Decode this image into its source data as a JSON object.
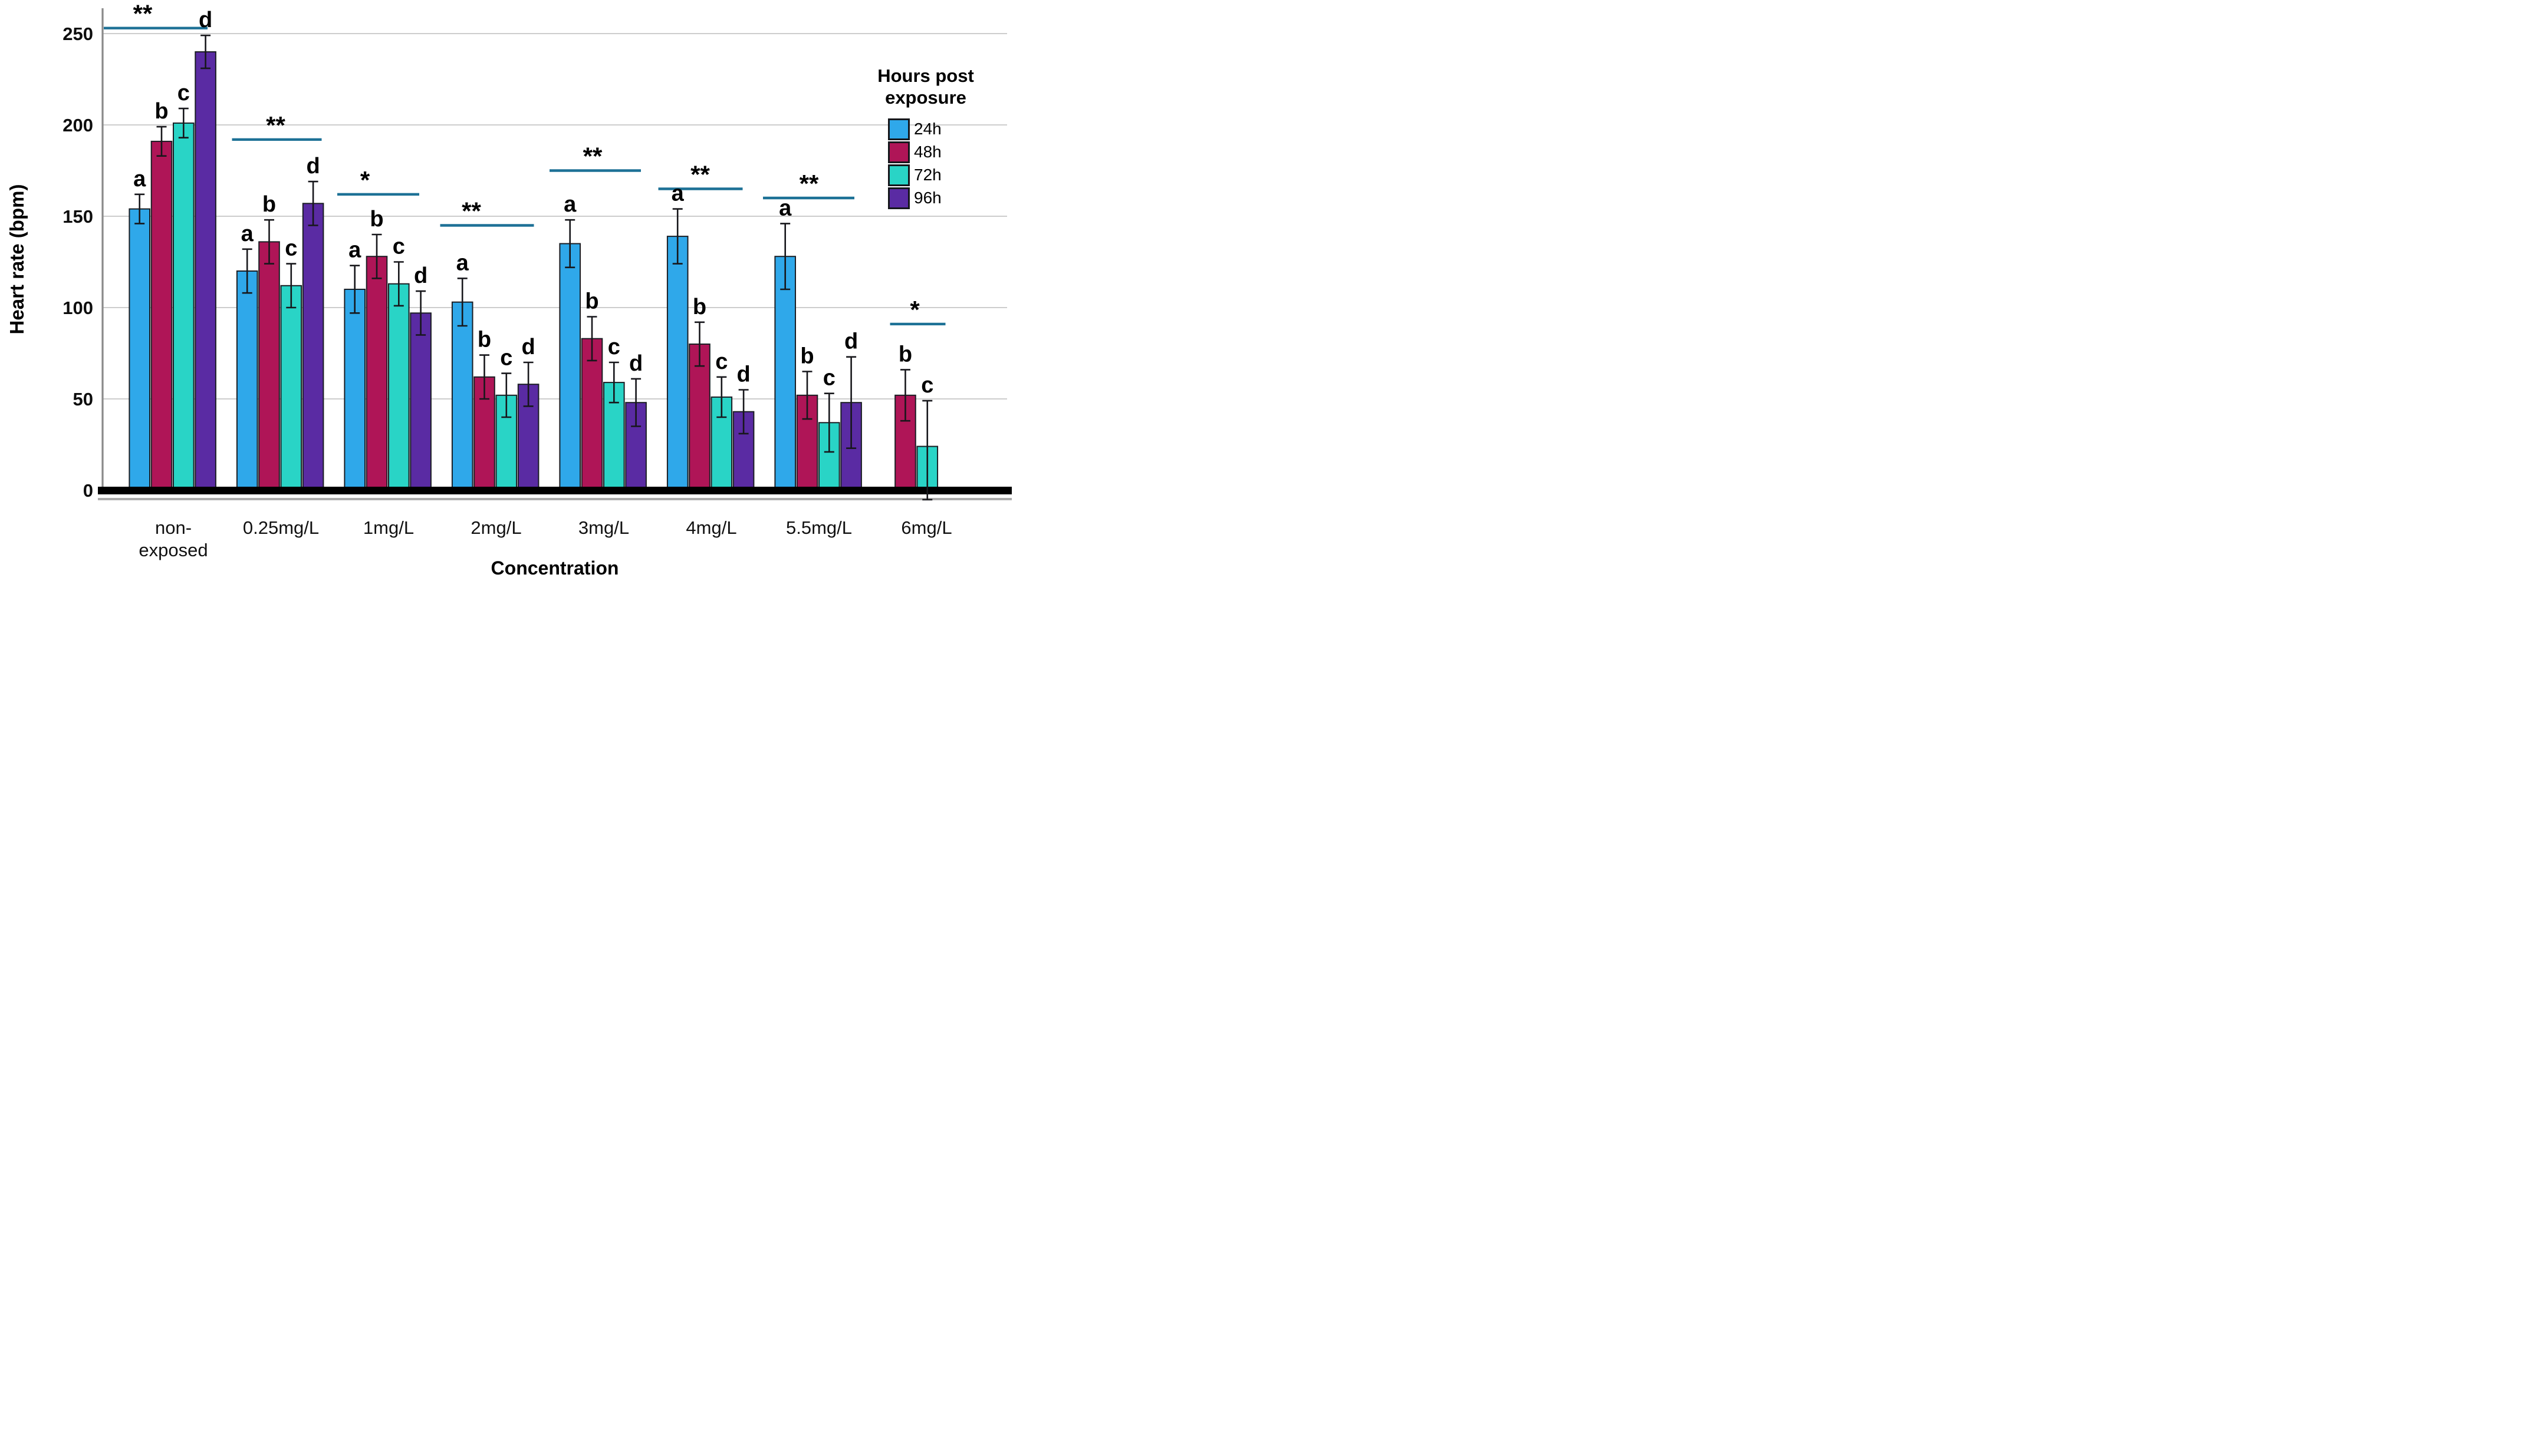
{
  "figure": {
    "kind": "grouped-bar-chart-with-error-bars",
    "background": "#ffffff"
  },
  "chart_data": {
    "type": "bar",
    "title": "",
    "xlabel": "Concentration",
    "ylabel": "Heart rate (bpm)",
    "ylim": [
      0,
      260
    ],
    "yticks": [
      0,
      50,
      100,
      150,
      200,
      250
    ],
    "grid": true,
    "legend": {
      "title": "Hours post\nexposure",
      "position": "right"
    },
    "categories": [
      "non-\nexposed",
      "0.25mg/L",
      "1mg/L",
      "2mg/L",
      "3mg/L",
      "4mg/L",
      "5.5mg/L",
      "6mg/L"
    ],
    "series": [
      {
        "name": "24h",
        "color": "#2FA8EA",
        "letter": "a",
        "values": [
          154,
          120,
          110,
          103,
          135,
          139,
          128,
          null
        ],
        "errors": [
          8,
          12,
          13,
          13,
          13,
          15,
          18,
          null
        ]
      },
      {
        "name": "48h",
        "color": "#AF1557",
        "letter": "b",
        "values": [
          191,
          136,
          128,
          62,
          83,
          80,
          52,
          52
        ],
        "errors": [
          8,
          12,
          12,
          12,
          12,
          12,
          13,
          14
        ]
      },
      {
        "name": "72h",
        "color": "#29D4C6",
        "letter": "c",
        "values": [
          201,
          112,
          113,
          52,
          59,
          51,
          37,
          24
        ],
        "errors": [
          8,
          12,
          12,
          12,
          11,
          11,
          16,
          25
        ]
      },
      {
        "name": "96h",
        "color": "#5A2BA3",
        "letter": "d",
        "values": [
          240,
          157,
          97,
          58,
          48,
          43,
          48,
          null
        ],
        "errors": [
          9,
          12,
          12,
          12,
          13,
          12,
          25,
          null
        ]
      }
    ],
    "significance": [
      {
        "category_index": 0,
        "stars": "**",
        "y": 253,
        "x0": -120,
        "x1": 58,
        "sx": -52
      },
      {
        "category_index": 1,
        "stars": "**",
        "y": 192,
        "x0": -83,
        "x1": 69,
        "sx": -9
      },
      {
        "category_index": 2,
        "stars": "*",
        "y": 162,
        "x0": -87,
        "x1": 52,
        "sx": -40
      },
      {
        "category_index": 3,
        "stars": "**",
        "y": 145,
        "x0": -95,
        "x1": 64,
        "sx": -42
      },
      {
        "category_index": 4,
        "stars": "**",
        "y": 175,
        "x0": -92,
        "x1": 63,
        "sx": -19
      },
      {
        "category_index": 5,
        "stars": "**",
        "y": 165,
        "x0": -90,
        "x1": 53,
        "sx": -19
      },
      {
        "category_index": 6,
        "stars": "**",
        "y": 160,
        "x0": -95,
        "x1": 60,
        "sx": -17
      },
      {
        "category_index": 7,
        "stars": "*",
        "y": 91,
        "x0": -62,
        "x1": 32,
        "sx": -20
      }
    ],
    "bar_position_overrides": [
      {
        "category_index": 7,
        "series_index": 1,
        "pos": 0.57
      },
      {
        "category_index": 7,
        "series_index": 2,
        "pos": 1.57
      }
    ],
    "colors": {
      "sig_line": "#1D7196",
      "gridline": "#C6C6C6",
      "axis_line": "#000000",
      "axis_shadow": "#ABABAB",
      "y_axis_line": "#8A8A8A",
      "bar_outline": "#1B1E24",
      "error_bar": "#17171B",
      "text": "#000000"
    }
  }
}
